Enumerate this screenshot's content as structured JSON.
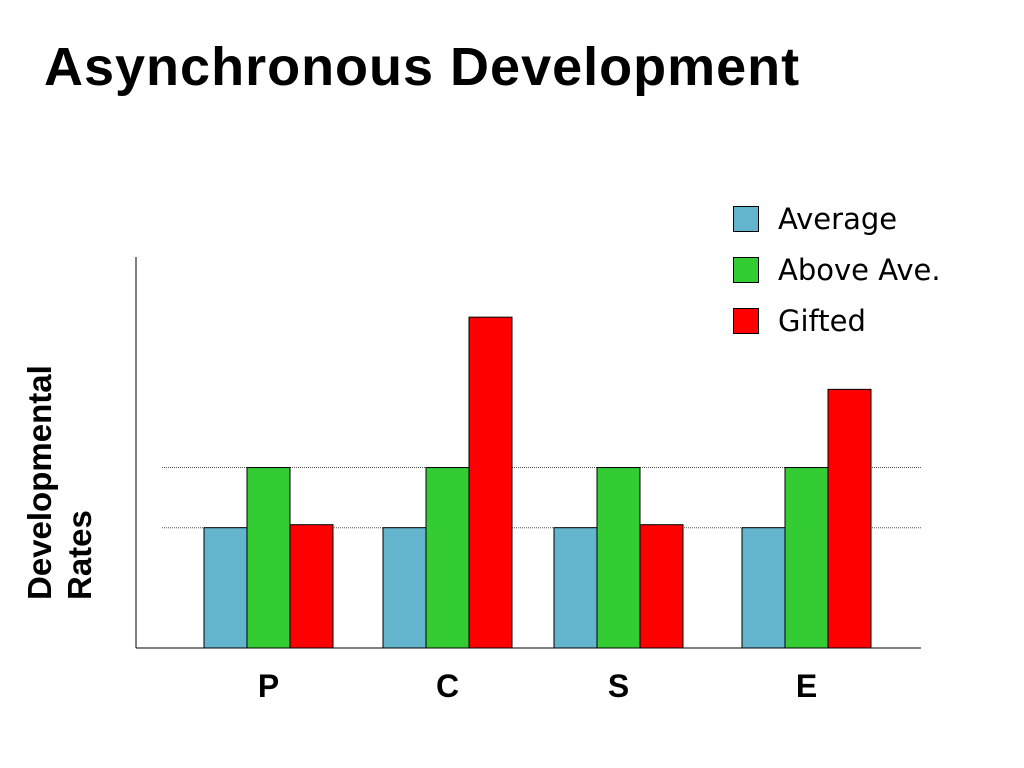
{
  "title": "Asynchronous Development",
  "chart_data": {
    "type": "bar",
    "title": "Asynchronous Development",
    "xlabel": "",
    "ylabel_lines": [
      "Developmental",
      "Rates"
    ],
    "categories": [
      "P",
      "C",
      "S",
      "E"
    ],
    "series": [
      {
        "name": "Average",
        "values": [
          2.0,
          2.0,
          2.0,
          2.0
        ],
        "color": "#62b5cc"
      },
      {
        "name": "Above Ave.",
        "values": [
          3.0,
          3.0,
          3.0,
          3.0
        ],
        "color": "#33cc33"
      },
      {
        "name": "Gifted",
        "values": [
          2.05,
          5.5,
          2.05,
          4.3
        ],
        "color": "#ff0000"
      }
    ],
    "ylim": [
      0,
      6.5
    ],
    "gridlines": [
      2,
      3
    ],
    "grid": "dotted horizontal",
    "legend_position": "top-right"
  }
}
